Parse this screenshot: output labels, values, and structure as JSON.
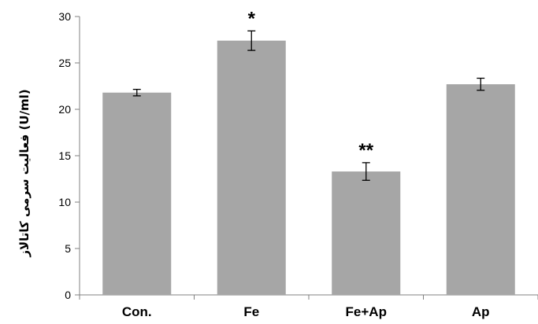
{
  "chart_data": {
    "type": "bar",
    "categories": [
      "Con.",
      "Fe",
      "Fe+Ap",
      "Ap"
    ],
    "values": [
      21.8,
      27.4,
      13.3,
      22.7
    ],
    "errors": [
      0.35,
      1.05,
      0.95,
      0.65
    ],
    "annotations": [
      "",
      "*",
      "**",
      ""
    ],
    "ylabel": "فعالیت سرمی کاتالاز (U/ml)",
    "xlabel": "",
    "title": "",
    "ylim": [
      0,
      30
    ],
    "yticks": [
      0,
      5,
      10,
      15,
      20,
      25,
      30
    ],
    "bar_color": "#a6a6a6",
    "grid": false,
    "legend": "none"
  }
}
